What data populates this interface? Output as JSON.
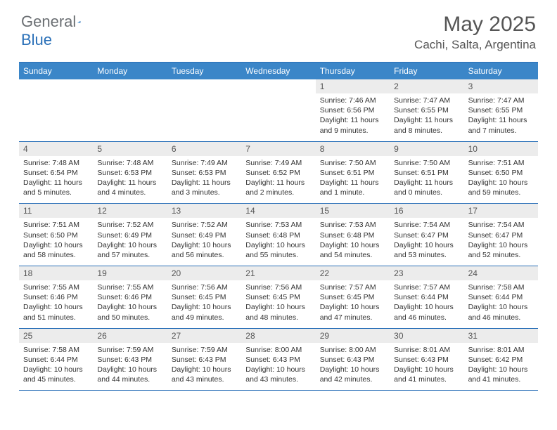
{
  "brand": {
    "part1": "General",
    "part2": "Blue"
  },
  "title": "May 2025",
  "location": "Cachi, Salta, Argentina",
  "colors": {
    "header_bar": "#3b86c8",
    "border": "#2a70b8",
    "daynum_bg": "#ececec",
    "text": "#333333",
    "title_text": "#555555"
  },
  "dow": [
    "Sunday",
    "Monday",
    "Tuesday",
    "Wednesday",
    "Thursday",
    "Friday",
    "Saturday"
  ],
  "weeks": [
    [
      null,
      null,
      null,
      null,
      {
        "n": "1",
        "sr": "7:46 AM",
        "ss": "6:56 PM",
        "dl": "11 hours and 9 minutes."
      },
      {
        "n": "2",
        "sr": "7:47 AM",
        "ss": "6:55 PM",
        "dl": "11 hours and 8 minutes."
      },
      {
        "n": "3",
        "sr": "7:47 AM",
        "ss": "6:55 PM",
        "dl": "11 hours and 7 minutes."
      }
    ],
    [
      {
        "n": "4",
        "sr": "7:48 AM",
        "ss": "6:54 PM",
        "dl": "11 hours and 5 minutes."
      },
      {
        "n": "5",
        "sr": "7:48 AM",
        "ss": "6:53 PM",
        "dl": "11 hours and 4 minutes."
      },
      {
        "n": "6",
        "sr": "7:49 AM",
        "ss": "6:53 PM",
        "dl": "11 hours and 3 minutes."
      },
      {
        "n": "7",
        "sr": "7:49 AM",
        "ss": "6:52 PM",
        "dl": "11 hours and 2 minutes."
      },
      {
        "n": "8",
        "sr": "7:50 AM",
        "ss": "6:51 PM",
        "dl": "11 hours and 1 minute."
      },
      {
        "n": "9",
        "sr": "7:50 AM",
        "ss": "6:51 PM",
        "dl": "11 hours and 0 minutes."
      },
      {
        "n": "10",
        "sr": "7:51 AM",
        "ss": "6:50 PM",
        "dl": "10 hours and 59 minutes."
      }
    ],
    [
      {
        "n": "11",
        "sr": "7:51 AM",
        "ss": "6:50 PM",
        "dl": "10 hours and 58 minutes."
      },
      {
        "n": "12",
        "sr": "7:52 AM",
        "ss": "6:49 PM",
        "dl": "10 hours and 57 minutes."
      },
      {
        "n": "13",
        "sr": "7:52 AM",
        "ss": "6:49 PM",
        "dl": "10 hours and 56 minutes."
      },
      {
        "n": "14",
        "sr": "7:53 AM",
        "ss": "6:48 PM",
        "dl": "10 hours and 55 minutes."
      },
      {
        "n": "15",
        "sr": "7:53 AM",
        "ss": "6:48 PM",
        "dl": "10 hours and 54 minutes."
      },
      {
        "n": "16",
        "sr": "7:54 AM",
        "ss": "6:47 PM",
        "dl": "10 hours and 53 minutes."
      },
      {
        "n": "17",
        "sr": "7:54 AM",
        "ss": "6:47 PM",
        "dl": "10 hours and 52 minutes."
      }
    ],
    [
      {
        "n": "18",
        "sr": "7:55 AM",
        "ss": "6:46 PM",
        "dl": "10 hours and 51 minutes."
      },
      {
        "n": "19",
        "sr": "7:55 AM",
        "ss": "6:46 PM",
        "dl": "10 hours and 50 minutes."
      },
      {
        "n": "20",
        "sr": "7:56 AM",
        "ss": "6:45 PM",
        "dl": "10 hours and 49 minutes."
      },
      {
        "n": "21",
        "sr": "7:56 AM",
        "ss": "6:45 PM",
        "dl": "10 hours and 48 minutes."
      },
      {
        "n": "22",
        "sr": "7:57 AM",
        "ss": "6:45 PM",
        "dl": "10 hours and 47 minutes."
      },
      {
        "n": "23",
        "sr": "7:57 AM",
        "ss": "6:44 PM",
        "dl": "10 hours and 46 minutes."
      },
      {
        "n": "24",
        "sr": "7:58 AM",
        "ss": "6:44 PM",
        "dl": "10 hours and 46 minutes."
      }
    ],
    [
      {
        "n": "25",
        "sr": "7:58 AM",
        "ss": "6:44 PM",
        "dl": "10 hours and 45 minutes."
      },
      {
        "n": "26",
        "sr": "7:59 AM",
        "ss": "6:43 PM",
        "dl": "10 hours and 44 minutes."
      },
      {
        "n": "27",
        "sr": "7:59 AM",
        "ss": "6:43 PM",
        "dl": "10 hours and 43 minutes."
      },
      {
        "n": "28",
        "sr": "8:00 AM",
        "ss": "6:43 PM",
        "dl": "10 hours and 43 minutes."
      },
      {
        "n": "29",
        "sr": "8:00 AM",
        "ss": "6:43 PM",
        "dl": "10 hours and 42 minutes."
      },
      {
        "n": "30",
        "sr": "8:01 AM",
        "ss": "6:43 PM",
        "dl": "10 hours and 41 minutes."
      },
      {
        "n": "31",
        "sr": "8:01 AM",
        "ss": "6:42 PM",
        "dl": "10 hours and 41 minutes."
      }
    ]
  ],
  "labels": {
    "sunrise": "Sunrise: ",
    "sunset": "Sunset: ",
    "daylight": "Daylight: "
  }
}
